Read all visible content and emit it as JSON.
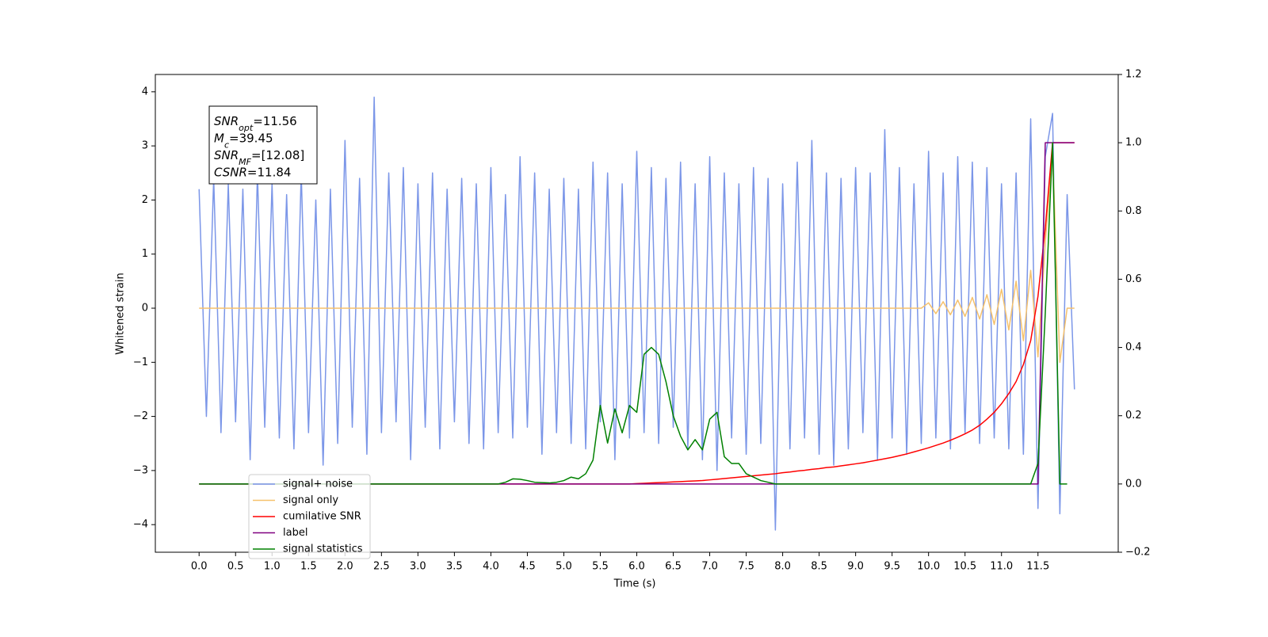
{
  "chart_data": {
    "type": "line",
    "x_label": "Time (s)",
    "y_label": "Whitened strain",
    "x": [
      0,
      0.1,
      0.2,
      0.3,
      0.4,
      0.5,
      0.6,
      0.7,
      0.8,
      0.9,
      1,
      1.1,
      1.2,
      1.3,
      1.4,
      1.5,
      1.6,
      1.7,
      1.8,
      1.9,
      2,
      2.1,
      2.2,
      2.3,
      2.4,
      2.5,
      2.6,
      2.7,
      2.8,
      2.9,
      3,
      3.1,
      3.2,
      3.3,
      3.4,
      3.5,
      3.6,
      3.7,
      3.8,
      3.9,
      4,
      4.1,
      4.2,
      4.3,
      4.4,
      4.5,
      4.6,
      4.7,
      4.8,
      4.9,
      5,
      5.1,
      5.2,
      5.3,
      5.4,
      5.5,
      5.6,
      5.7,
      5.8,
      5.9,
      6,
      6.1,
      6.2,
      6.3,
      6.4,
      6.5,
      6.6,
      6.7,
      6.8,
      6.9,
      7,
      7.1,
      7.2,
      7.3,
      7.4,
      7.5,
      7.6,
      7.7,
      7.8,
      7.9,
      8,
      8.1,
      8.2,
      8.3,
      8.4,
      8.5,
      8.6,
      8.7,
      8.8,
      8.9,
      9,
      9.1,
      9.2,
      9.3,
      9.4,
      9.5,
      9.6,
      9.7,
      9.8,
      9.9,
      10,
      10.1,
      10.2,
      10.3,
      10.4,
      10.5,
      10.6,
      10.7,
      10.8,
      10.9,
      11,
      11.1,
      11.2,
      11.3,
      11.4,
      11.5,
      11.6,
      11.7,
      11.8,
      11.9,
      12
    ],
    "series": [
      {
        "name": "signal+ noise",
        "color": "#7b96e8",
        "values": [
          2.2,
          -2.0,
          2.4,
          -2.3,
          2.3,
          -2.1,
          2.2,
          -2.8,
          2.5,
          -2.2,
          2.3,
          -2.4,
          2.1,
          -2.6,
          2.5,
          -2.3,
          2.0,
          -2.9,
          2.2,
          -2.5,
          3.1,
          -2.2,
          2.4,
          -2.7,
          3.9,
          -2.3,
          2.5,
          -2.1,
          2.6,
          -2.8,
          2.3,
          -2.2,
          2.5,
          -2.6,
          2.2,
          -2.1,
          2.4,
          -2.5,
          2.3,
          -2.6,
          2.6,
          -2.3,
          2.1,
          -2.4,
          2.8,
          -2.2,
          2.5,
          -2.7,
          2.2,
          -2.3,
          2.4,
          -2.5,
          2.2,
          -2.6,
          2.7,
          -2.1,
          2.5,
          -2.8,
          2.3,
          -2.4,
          2.9,
          -2.3,
          2.6,
          -2.5,
          2.4,
          -2.2,
          2.7,
          -2.6,
          2.3,
          -2.8,
          2.8,
          -3.0,
          2.5,
          -2.4,
          2.3,
          -2.7,
          2.6,
          -2.5,
          2.4,
          -4.1,
          2.3,
          -2.6,
          2.7,
          -2.4,
          3.1,
          -2.7,
          2.5,
          -2.9,
          2.4,
          -2.6,
          2.6,
          -2.3,
          2.5,
          -2.8,
          3.3,
          -2.4,
          2.6,
          -2.7,
          2.3,
          -2.5,
          2.9,
          -2.4,
          2.5,
          -2.6,
          2.8,
          -2.3,
          2.7,
          -2.5,
          2.6,
          -2.4,
          2.3,
          -2.6,
          2.5,
          -2.7,
          3.5,
          -3.7,
          2.8,
          3.6,
          -3.8,
          2.1,
          -1.5
        ]
      },
      {
        "name": "signal only",
        "color": "#f5c16c",
        "values": [
          0,
          0,
          0,
          0,
          0,
          0,
          0,
          0,
          0,
          0,
          0,
          0,
          0,
          0,
          0,
          0,
          0,
          0,
          0,
          0,
          0,
          0,
          0,
          0,
          0,
          0,
          0,
          0,
          0,
          0,
          0,
          0,
          0,
          0,
          0,
          0,
          0,
          0,
          0,
          0,
          0,
          0,
          0,
          0,
          0,
          0,
          0,
          0,
          0,
          0,
          0,
          0,
          0,
          0,
          0,
          0,
          0,
          0,
          0,
          0,
          0,
          0,
          0,
          0,
          0,
          0,
          0,
          0,
          0,
          0,
          0,
          0,
          0,
          0,
          0,
          0,
          0,
          0,
          0,
          0,
          0,
          0,
          0,
          0,
          0,
          0,
          0,
          0,
          0,
          0,
          0,
          0,
          0,
          0,
          0,
          0,
          0,
          0,
          0,
          0,
          0.1,
          -0.1,
          0.12,
          -0.12,
          0.15,
          -0.15,
          0.2,
          -0.2,
          0.25,
          -0.3,
          0.35,
          -0.4,
          0.5,
          -0.6,
          0.7,
          -0.9,
          1.2,
          2.9,
          -1.0,
          0,
          0
        ]
      },
      {
        "name": "cumilative SNR",
        "color": "#ff0000",
        "axis": "y2",
        "values": [
          0,
          0,
          0,
          0,
          0,
          0,
          0,
          0,
          0,
          0,
          0,
          0,
          0,
          0,
          0,
          0,
          0,
          0,
          0,
          0,
          0,
          0,
          0,
          0,
          0,
          0,
          0,
          0,
          0,
          0,
          0,
          0,
          0,
          0,
          0,
          0,
          0,
          0,
          0,
          0,
          0,
          0,
          0,
          0,
          0,
          0,
          0,
          0,
          0,
          0,
          0,
          0,
          0,
          0,
          0,
          0,
          0,
          0,
          0,
          0,
          0.001,
          0.002,
          0.003,
          0.004,
          0.005,
          0.006,
          0.007,
          0.008,
          0.009,
          0.01,
          0.012,
          0.014,
          0.016,
          0.018,
          0.02,
          0.022,
          0.024,
          0.026,
          0.028,
          0.03,
          0.033,
          0.035,
          0.038,
          0.04,
          0.043,
          0.045,
          0.048,
          0.05,
          0.053,
          0.056,
          0.059,
          0.062,
          0.066,
          0.07,
          0.074,
          0.078,
          0.083,
          0.088,
          0.094,
          0.1,
          0.106,
          0.113,
          0.12,
          0.128,
          0.137,
          0.147,
          0.158,
          0.172,
          0.19,
          0.21,
          0.235,
          0.265,
          0.3,
          0.35,
          0.42,
          0.55,
          0.75,
          1.0,
          1.0,
          1.0,
          1.0
        ]
      },
      {
        "name": "label",
        "color": "#800080",
        "axis": "y2",
        "values": [
          0,
          0,
          0,
          0,
          0,
          0,
          0,
          0,
          0,
          0,
          0,
          0,
          0,
          0,
          0,
          0,
          0,
          0,
          0,
          0,
          0,
          0,
          0,
          0,
          0,
          0,
          0,
          0,
          0,
          0,
          0,
          0,
          0,
          0,
          0,
          0,
          0,
          0,
          0,
          0,
          0,
          0,
          0,
          0,
          0,
          0,
          0,
          0,
          0,
          0,
          0,
          0,
          0,
          0,
          0,
          0,
          0,
          0,
          0,
          0,
          0,
          0,
          0,
          0,
          0,
          0,
          0,
          0,
          0,
          0,
          0,
          0,
          0,
          0,
          0,
          0,
          0,
          0,
          0,
          0,
          0,
          0,
          0,
          0,
          0,
          0,
          0,
          0,
          0,
          0,
          0,
          0,
          0,
          0,
          0,
          0,
          0,
          0,
          0,
          0,
          0,
          0,
          0,
          0,
          0,
          0,
          0,
          0,
          0,
          0,
          0,
          0,
          0,
          0,
          0,
          0,
          1,
          1,
          1,
          1,
          1
        ]
      },
      {
        "name": "signal statistics",
        "color": "#008000",
        "axis": "y2",
        "values": [
          0,
          0,
          0,
          0,
          0,
          0,
          0,
          0,
          0,
          0,
          0,
          0,
          0,
          0,
          0,
          0,
          0,
          0,
          0,
          0,
          0,
          0,
          0,
          0,
          0,
          0,
          0,
          0,
          0,
          0,
          0,
          0,
          0,
          0,
          0,
          0,
          0,
          0,
          0,
          0,
          0,
          0,
          0.005,
          0.015,
          0.014,
          0.01,
          0.005,
          0.004,
          0.003,
          0.005,
          0.01,
          0.02,
          0.015,
          0.03,
          0.07,
          0.23,
          0.12,
          0.22,
          0.15,
          0.23,
          0.21,
          0.38,
          0.4,
          0.38,
          0.3,
          0.2,
          0.14,
          0.1,
          0.13,
          0.1,
          0.19,
          0.21,
          0.08,
          0.06,
          0.06,
          0.03,
          0.02,
          0.01,
          0.005,
          0,
          0,
          0,
          0,
          0,
          0,
          0,
          0,
          0,
          0,
          0,
          0,
          0,
          0,
          0,
          0,
          0,
          0,
          0,
          0,
          0,
          0,
          0,
          0,
          0,
          0,
          0,
          0,
          0,
          0,
          0,
          0,
          0,
          0,
          0,
          0,
          0.06,
          0.5,
          1.0,
          0,
          0,
          null
        ]
      }
    ],
    "xlim": [
      -0.6,
      12.6
    ],
    "xticks": [
      {
        "value": 0,
        "label": "0.0"
      },
      0.5,
      {
        "value": 1,
        "label": "1.0"
      },
      1.5,
      {
        "value": 2,
        "label": "2.0"
      },
      2.5,
      {
        "value": 3,
        "label": "3.0"
      },
      3.5,
      {
        "value": 4,
        "label": "4.0"
      },
      4.5,
      {
        "value": 5,
        "label": "5.0"
      },
      5.5,
      {
        "value": 6,
        "label": "6.0"
      },
      6.5,
      {
        "value": 7,
        "label": "7.0"
      },
      7.5,
      {
        "value": 8,
        "label": "8.0"
      },
      8.5,
      {
        "value": 9,
        "label": "9.0"
      },
      9.5,
      {
        "value": 10,
        "label": "10.0"
      },
      10.5,
      {
        "value": 11,
        "label": "11.0"
      },
      11.5
    ],
    "ylim": [
      -4.51,
      4.32
    ],
    "yticks": [
      {
        "value": -4,
        "label": "−4"
      },
      {
        "value": -3,
        "label": "−3"
      },
      {
        "value": -2,
        "label": "−2"
      },
      {
        "value": -1,
        "label": "−1"
      },
      0,
      1,
      2,
      3,
      4
    ],
    "y2lim": [
      -0.2,
      1.2
    ],
    "y2ticks": [
      {
        "value": -0.2,
        "label": "−0.2"
      },
      {
        "value": 0,
        "label": "0.0"
      },
      0.2,
      0.4,
      0.6,
      0.8,
      {
        "value": 1,
        "label": "1.0"
      },
      1.2
    ],
    "legend": "lower left",
    "annotations": [
      {
        "name": "SNR",
        "subscript": "opt",
        "text": "=11.56"
      },
      {
        "name": "M",
        "subscript": "c",
        "text": "=39.45"
      },
      {
        "name": "SNR",
        "subscript": "MF",
        "text": "=[12.08]"
      },
      {
        "name": "CSNR",
        "text": "=11.84"
      }
    ]
  }
}
